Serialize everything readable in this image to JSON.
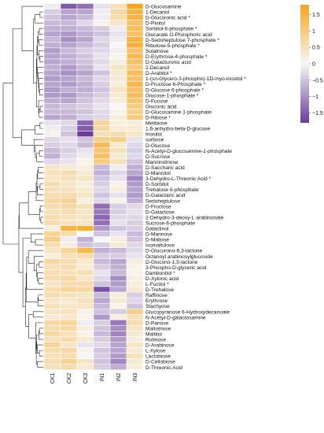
{
  "chart_data": {
    "type": "heatmap",
    "title": "",
    "columns": [
      "CK1",
      "CK2",
      "CK3",
      "IN1",
      "IN2",
      "IN3"
    ],
    "rows": [
      "D-Glucosamine",
      "1-Decanol",
      "D-Glucoronic acid *",
      "D-Pinitol",
      "Sorbitol-6-phosphate *",
      "Glucarate O-Phosphoric acid",
      "D-Sedoheptulose 7-phosphate *",
      "Ribulose-5-phosphate *",
      "Solatriose",
      "D-Erythrose-4-phosphate *",
      "D-Galacturonic acid",
      "2-Decanol",
      "D-Arabitol *",
      "1-(sn-Glycero-3-phospho)-1D-myo-inositol *",
      "D-Fructose 6-Phosphate *",
      "D-Glucose 6-phosphate *",
      "Glucose-1-phosphate *",
      "D-Fucose",
      "Gluconic acid",
      "D-Glucosamine 1-phosphate",
      "D-Ribose *",
      "Melibiose",
      "1,6-anhydro-beta-D-glucose",
      "Inositol",
      "sorbose",
      "D-Glucose",
      "N-Acetyl-D-glucosamine-1-phosphate",
      "D-Sucrose",
      "Manninotriose",
      "D-Saccharic acid",
      "D-Mannitol",
      "3-Dehydro-L-Threonic Acid *",
      "D-Sorbitol",
      "Trehalose 6-phosphate",
      "D-Galactaric acid",
      "Sedoheptulose",
      "D-Fructose",
      "D-Galactose",
      "2-Dehydro-3-deoxy-L-arabinonate",
      "Sucrose-6-phosphate",
      "Galactinol",
      "D-Mannose",
      "D-Maltose",
      "Isomaltulose",
      "D-Glucurono-6,3-lactone",
      "Octanoyl arabinosylglucoside",
      "D-Glucono-1,5-lactone",
      "3-Phospho-D-glyceric acid",
      "Dambonitol *",
      "D-Xylonic acid",
      "L-Fucitol *",
      "D-Trehalose",
      "Raffinose",
      "Erythrose",
      "Stachyose",
      "Glucopyranose 6-Hydroxydecanoate",
      "N-Acetyl-D-galactosamine",
      "D-Panose",
      "Maltotriose",
      "Maltitol",
      "Rutinose",
      "D-Arabinose",
      "L-Xylose",
      "Lactobiose",
      "D-Cellobiose",
      "D-Threonic Acid"
    ],
    "values": [
      [
        -0.1,
        -1.5,
        -1.3,
        -0.2,
        0.5,
        1.9
      ],
      [
        -0.4,
        -0.8,
        -0.8,
        -0.1,
        0.7,
        1.5
      ],
      [
        -0.5,
        -0.8,
        -0.6,
        -0.1,
        0.6,
        1.5
      ],
      [
        -0.6,
        -0.6,
        -0.3,
        0.1,
        0.4,
        1.2
      ],
      [
        -0.7,
        -0.7,
        -0.6,
        -0.4,
        -0.1,
        1.3
      ],
      [
        -0.8,
        -0.9,
        -0.7,
        -0.5,
        -0.2,
        1.2
      ],
      [
        -0.6,
        -1.0,
        -0.8,
        -0.3,
        -0.1,
        1.5
      ],
      [
        -0.7,
        -0.8,
        -0.6,
        -0.4,
        0.0,
        1.6
      ],
      [
        -0.9,
        -0.6,
        -0.4,
        -0.3,
        -0.1,
        1.2
      ],
      [
        -0.8,
        -0.7,
        -0.5,
        -0.2,
        0.1,
        1.4
      ],
      [
        -0.8,
        -0.7,
        -0.5,
        -0.3,
        0.2,
        1.2
      ],
      [
        -0.7,
        -0.9,
        -0.6,
        -0.2,
        0.4,
        1.0
      ],
      [
        -0.8,
        -1.0,
        -0.8,
        -0.5,
        0.3,
        1.3
      ],
      [
        -0.9,
        -0.8,
        -0.6,
        -0.3,
        0.3,
        1.2
      ],
      [
        -0.8,
        -0.9,
        -0.7,
        -0.4,
        0.2,
        1.4
      ],
      [
        -0.9,
        -0.7,
        -0.7,
        -0.5,
        0.4,
        1.2
      ],
      [
        -0.9,
        -0.9,
        -0.6,
        -0.4,
        0.3,
        1.3
      ],
      [
        -0.7,
        -0.8,
        -0.5,
        -0.3,
        0.2,
        1.1
      ],
      [
        -0.6,
        -0.5,
        -0.4,
        -0.2,
        0.0,
        1.0
      ],
      [
        -0.6,
        -0.6,
        -0.5,
        -0.3,
        0.1,
        0.9
      ],
      [
        -0.8,
        -0.7,
        -0.4,
        -0.3,
        0.2,
        1.0
      ],
      [
        -0.2,
        -0.3,
        -1.4,
        0.8,
        0.2,
        0.2
      ],
      [
        -0.1,
        -0.4,
        -1.5,
        0.7,
        0.3,
        0.3
      ],
      [
        0.1,
        -0.5,
        -1.8,
        0.5,
        0.6,
        0.4
      ],
      [
        -0.3,
        -0.2,
        -0.5,
        0.9,
        0.9,
        -0.2
      ],
      [
        -0.4,
        -0.3,
        -0.6,
        1.3,
        0.3,
        -0.3
      ],
      [
        -0.6,
        -0.4,
        -0.2,
        1.1,
        0.5,
        -0.4
      ],
      [
        -0.7,
        -0.3,
        -0.1,
        1.2,
        0.3,
        -0.3
      ],
      [
        -0.3,
        -0.2,
        0.1,
        1.0,
        0.5,
        -0.5
      ],
      [
        0.4,
        0.3,
        0.2,
        -0.6,
        -0.1,
        -0.7
      ],
      [
        0.5,
        0.6,
        0.3,
        -0.7,
        -0.3,
        -0.8
      ],
      [
        0.4,
        0.5,
        0.4,
        -0.5,
        -0.2,
        -1.1
      ],
      [
        0.6,
        0.4,
        0.2,
        -0.4,
        0.1,
        -0.9
      ],
      [
        0.5,
        0.5,
        0.3,
        -0.3,
        0.2,
        -0.8
      ],
      [
        0.6,
        0.6,
        0.4,
        -0.5,
        -0.2,
        -0.9
      ],
      [
        0.7,
        0.8,
        0.2,
        -0.3,
        0.1,
        -0.7
      ],
      [
        0.6,
        0.7,
        0.5,
        -1.3,
        -0.4,
        -0.3
      ],
      [
        0.5,
        0.6,
        0.4,
        -1.2,
        -0.4,
        -0.2
      ],
      [
        0.6,
        0.5,
        0.4,
        -1.4,
        -0.3,
        -0.3
      ],
      [
        0.6,
        0.5,
        0.4,
        -1.3,
        -0.2,
        -0.4
      ],
      [
        0.2,
        1.5,
        1.6,
        -0.9,
        -0.5,
        -0.4
      ],
      [
        0.8,
        0.6,
        0.0,
        -0.5,
        -0.2,
        -0.6
      ],
      [
        0.9,
        -0.1,
        -0.7,
        0.0,
        0.2,
        -0.5
      ],
      [
        0.6,
        0.2,
        -0.5,
        -0.4,
        0.3,
        -0.3
      ],
      [
        0.4,
        0.8,
        1.4,
        -0.7,
        -0.6,
        -0.3
      ],
      [
        0.2,
        0.5,
        0.6,
        -0.4,
        -0.4,
        -0.2
      ],
      [
        0.7,
        0.6,
        0.3,
        -0.6,
        -0.8,
        0.2
      ],
      [
        0.5,
        0.6,
        0.3,
        -0.4,
        -0.7,
        0.1
      ],
      [
        0.6,
        0.5,
        0.6,
        -0.2,
        -0.6,
        0.1
      ],
      [
        0.6,
        0.7,
        0.4,
        -0.3,
        -1.0,
        0.2
      ],
      [
        0.4,
        0.6,
        0.6,
        -0.5,
        -0.9,
        0.2
      ],
      [
        0.6,
        0.8,
        0.7,
        -1.6,
        -0.8,
        0.3
      ],
      [
        0.6,
        0.5,
        0.4,
        -0.6,
        0.2,
        -0.4
      ],
      [
        0.4,
        0.3,
        0.5,
        -0.8,
        0.3,
        -0.3
      ],
      [
        0.5,
        0.4,
        0.4,
        -0.6,
        0.1,
        -0.5
      ],
      [
        0.4,
        0.5,
        0.1,
        -0.5,
        -0.4,
        0.9
      ],
      [
        0.3,
        0.3,
        0.1,
        -0.9,
        0.2,
        0.5
      ],
      [
        0.7,
        0.8,
        -0.1,
        -0.4,
        -1.2,
        0.6
      ],
      [
        0.6,
        0.7,
        0.2,
        -0.5,
        -1.0,
        0.4
      ],
      [
        0.7,
        0.5,
        0.1,
        -0.6,
        -1.1,
        0.3
      ],
      [
        0.5,
        0.6,
        0.3,
        -0.4,
        -0.9,
        0.2
      ],
      [
        0.8,
        0.4,
        -0.2,
        -0.3,
        -0.8,
        0.4
      ],
      [
        0.6,
        0.7,
        0.1,
        -0.5,
        -0.8,
        0.3
      ],
      [
        0.5,
        0.6,
        0.0,
        -0.4,
        -0.9,
        0.5
      ],
      [
        0.6,
        0.8,
        0.4,
        -0.5,
        -1.1,
        0.3
      ],
      [
        0.5,
        0.6,
        0.3,
        -0.4,
        -0.7,
        0.2
      ]
    ],
    "color_scale": {
      "min": -1.8,
      "max": 1.8,
      "low_color": "#6a3d9a",
      "mid_color": "#f7f7f7",
      "high_color": "#f5a623",
      "ticks": [
        1.5,
        1,
        0.5,
        0,
        -0.5,
        -1,
        -1.5
      ],
      "tick_labels": [
        "1.5",
        "1",
        "0.5",
        "0",
        "−0.5",
        "−1",
        "−1.5"
      ]
    },
    "row_dendrogram": true,
    "column_dendrogram": false,
    "grid": false,
    "legend_position": "right"
  }
}
